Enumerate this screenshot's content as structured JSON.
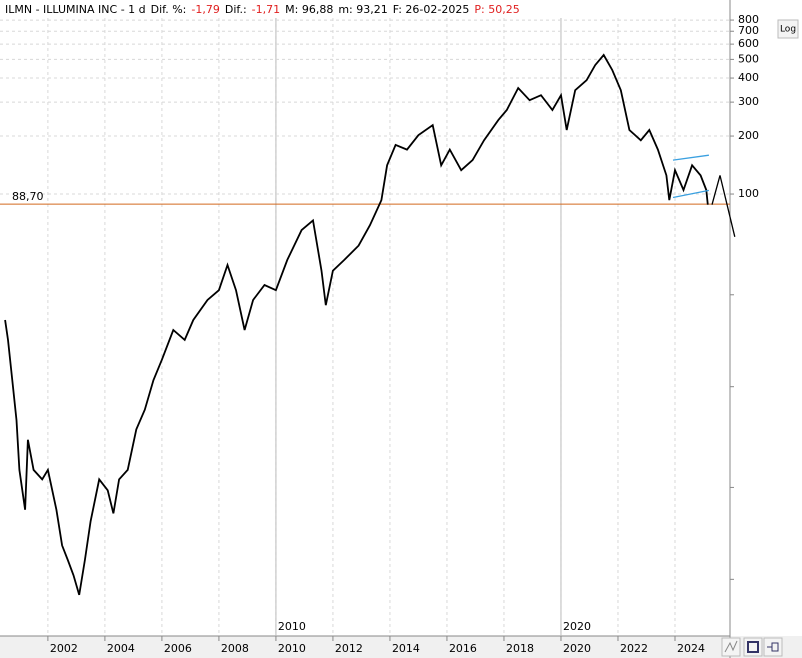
{
  "chart_data": {
    "type": "line",
    "header": [
      {
        "text": "ILMN - ILLUMINA INC - 1 d",
        "color": "#000000"
      },
      {
        "text": "Dif. %:",
        "color": "#000000"
      },
      {
        "text": "-1,79",
        "color": "#e02020"
      },
      {
        "text": "Dif.:",
        "color": "#000000"
      },
      {
        "text": "-1,71",
        "color": "#e02020"
      },
      {
        "text": "M: 96,88",
        "color": "#000000"
      },
      {
        "text": "m: 93,21",
        "color": "#000000"
      },
      {
        "text": "F: 26-02-2025",
        "color": "#000000"
      },
      {
        "text": "P: 50,25",
        "color": "#e02020"
      }
    ],
    "log_scale": true,
    "log_button": "Log",
    "grid": true,
    "xlim": [
      2000.32,
      2025.93
    ],
    "ylim": [
      0.508,
      820
    ],
    "xticks": [
      2002,
      2004,
      2006,
      2008,
      2010,
      2012,
      2014,
      2016,
      2018,
      2020,
      2022,
      2024
    ],
    "decade_marks": [
      2010,
      2020
    ],
    "yticks": [
      100,
      200,
      300,
      400,
      500,
      600,
      700,
      800
    ],
    "minor_yticks": [
      30,
      10,
      3,
      1
    ],
    "hline": {
      "value": 88.7,
      "label": "88,70",
      "color": "#d2691e"
    },
    "series": [
      {
        "color": "#000000",
        "x": [
          2000.5,
          2000.6,
          2000.75,
          2000.9,
          2001.0,
          2001.2,
          2001.3,
          2001.5,
          2001.8,
          2002.0,
          2002.3,
          2002.5,
          2002.7,
          2002.9,
          2003.1,
          2003.3,
          2003.5,
          2003.8,
          2004.1,
          2004.3,
          2004.5,
          2004.8,
          2005.1,
          2005.4,
          2005.7,
          2006.0,
          2006.4,
          2006.8,
          2007.1,
          2007.6,
          2008.0,
          2008.3,
          2008.6,
          2008.9,
          2009.2,
          2009.6,
          2010.0,
          2010.4,
          2010.9,
          2011.3,
          2011.6,
          2011.75,
          2012.0,
          2012.4,
          2012.9,
          2013.3,
          2013.7,
          2013.9,
          2014.2,
          2014.6,
          2015.0,
          2015.5,
          2015.8,
          2016.1,
          2016.5,
          2016.9,
          2017.3,
          2017.8,
          2018.1,
          2018.5,
          2018.9,
          2019.3,
          2019.7,
          2020.0,
          2020.2,
          2020.5,
          2020.9,
          2021.2,
          2021.5,
          2021.8,
          2022.1,
          2022.4,
          2022.8,
          2023.1,
          2023.4,
          2023.7,
          2023.8,
          2024.0,
          2024.3,
          2024.6,
          2024.9,
          2025.1,
          2025.15
        ],
        "values": [
          22.2,
          17.5,
          10.8,
          6.7,
          3.7,
          2.3,
          5.3,
          3.7,
          3.3,
          3.7,
          2.3,
          1.5,
          1.26,
          1.05,
          0.83,
          1.26,
          2.0,
          3.3,
          2.9,
          2.2,
          3.3,
          3.7,
          6.0,
          7.6,
          10.8,
          13.8,
          19.7,
          17.5,
          22.2,
          28.2,
          31.7,
          42.8,
          31.7,
          19.7,
          28.2,
          33.7,
          31.7,
          45.5,
          65,
          73,
          40,
          26.5,
          40,
          45.5,
          54,
          69,
          93,
          141,
          180,
          170,
          202,
          228,
          141,
          170,
          133,
          150,
          190,
          242,
          273,
          355,
          307,
          326,
          273,
          326,
          215,
          346,
          390,
          467,
          527,
          440,
          346,
          215,
          190,
          215,
          170,
          125,
          93,
          133,
          105,
          141,
          125,
          105,
          88
        ]
      },
      {
        "color": "#000000",
        "x": [
          2025.3,
          2025.58,
          2026.1
        ],
        "values": [
          88,
          125,
          60
        ]
      },
      {
        "color": "#3aa0e0",
        "x": [
          2023.93,
          2025.19
        ],
        "values": [
          150,
          159
        ]
      },
      {
        "color": "#3aa0e0",
        "x": [
          2023.93,
          2025.19
        ],
        "values": [
          96,
          104.5
        ]
      }
    ]
  }
}
